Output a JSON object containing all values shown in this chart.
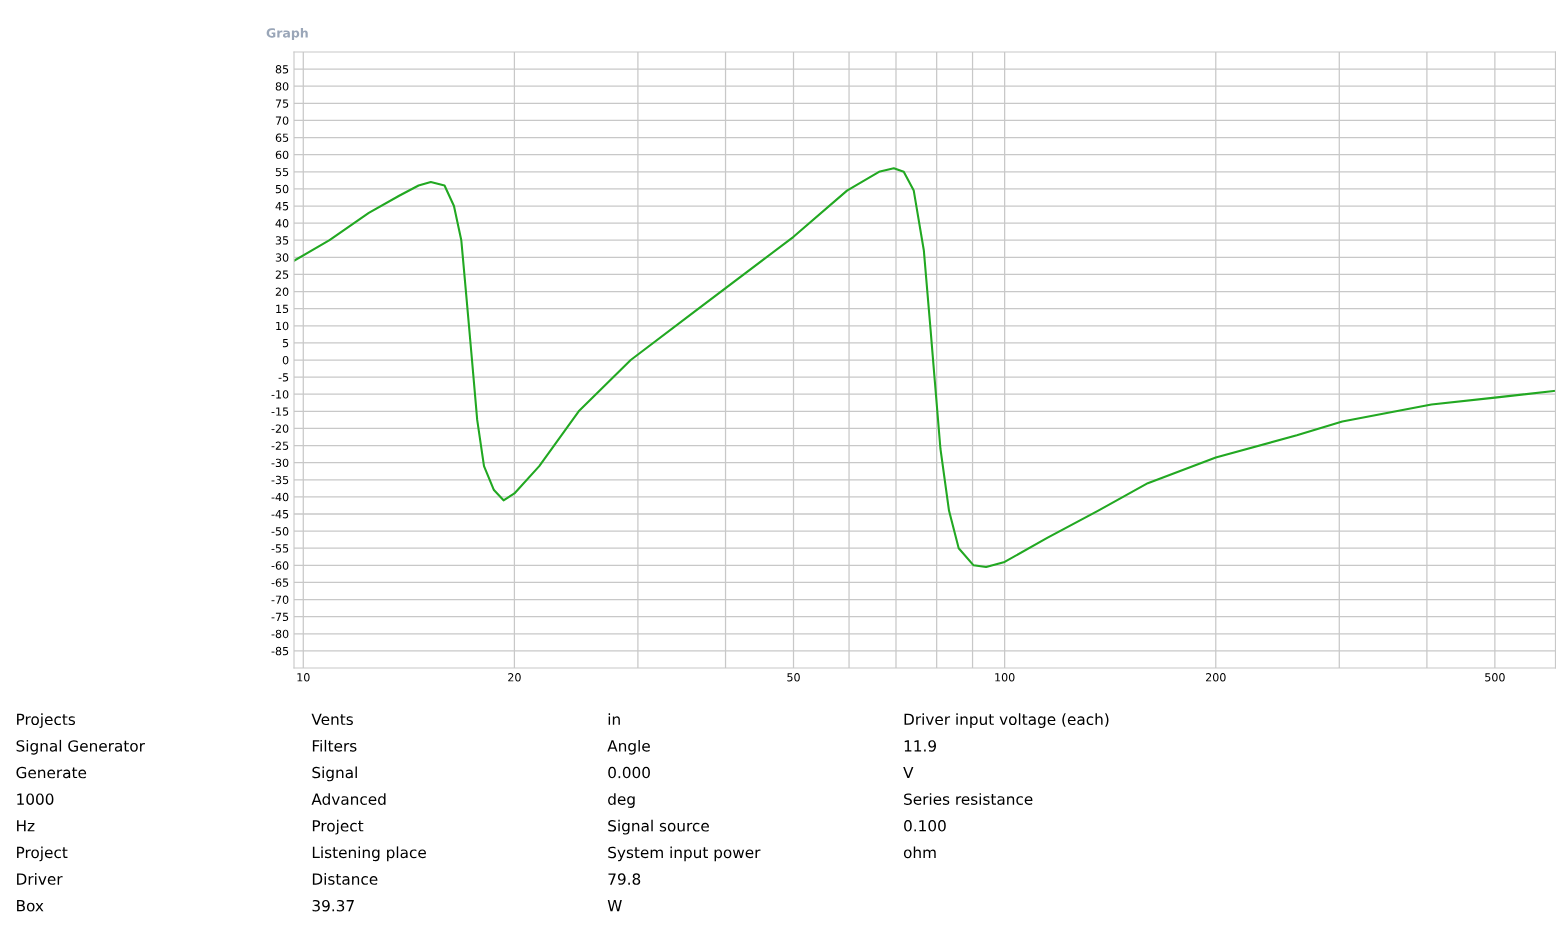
{
  "chart_data": {
    "type": "line",
    "title": "Graph",
    "xlim": [
      9.7,
      610
    ],
    "ylim": [
      -90,
      90
    ],
    "log": "x",
    "xticks": [
      10,
      20,
      {
        "value": 30,
        "label": null
      },
      {
        "value": 40,
        "label": null
      },
      50,
      {
        "value": 60,
        "label": null
      },
      {
        "value": 70,
        "label": null
      },
      {
        "value": 80,
        "label": null
      },
      {
        "value": 90,
        "label": null
      },
      100,
      200,
      {
        "value": 300,
        "label": null
      },
      {
        "value": 400,
        "label": null
      },
      500
    ],
    "yticks": [
      -85,
      -80,
      -75,
      -70,
      -65,
      -60,
      -55,
      -50,
      -45,
      -40,
      -35,
      -30,
      -25,
      -20,
      -15,
      -10,
      -5,
      0,
      5,
      10,
      15,
      20,
      25,
      30,
      35,
      40,
      45,
      50,
      55,
      60,
      65,
      70,
      75,
      80,
      85
    ],
    "grid": true,
    "marker": "none",
    "line_style": "solid",
    "series": [
      {
        "color": "#22a822",
        "x": [
          9.7,
          10.9,
          12.4,
          13.7,
          14.6,
          15.2,
          15.9,
          16.4,
          16.8,
          17.1,
          17.4,
          17.7,
          18.1,
          18.7,
          19.3,
          20.0,
          21.7,
          24.7,
          29.3,
          36.6,
          50,
          59.6,
          66.2,
          69.5,
          71.8,
          74.2,
          76.7,
          78.4,
          79.5,
          81,
          83.3,
          86,
          90.3,
          94.1,
          100,
          115,
          136,
          160,
          200,
          261,
          303,
          406,
          500,
          610
        ],
        "values": [
          29,
          35,
          43,
          48,
          51,
          52,
          51,
          45,
          35,
          17.5,
          0,
          -17.5,
          -31,
          -38,
          -41,
          -39,
          -31,
          -15,
          0,
          15,
          36,
          49.5,
          55,
          56,
          55,
          49.5,
          32,
          9,
          -6,
          -26,
          -44,
          -55,
          -60,
          -60.5,
          -59,
          -52,
          -44,
          -36,
          -28.5,
          -22,
          -18,
          -13,
          -11,
          -9
        ]
      }
    ],
    "annotations": [
      "Projects",
      "Signal Generator",
      "Generate",
      "1000",
      "Hz",
      "Project",
      "Driver",
      "Box",
      "Vents",
      "Filters",
      "Signal",
      "Advanced",
      "Project",
      "Listening place",
      "Distance",
      "39.37",
      "in",
      "Angle",
      "0.000",
      "deg",
      "Signal source",
      "System input power",
      "79.8",
      "W",
      "Driver input voltage (each)",
      "11.9",
      "V",
      "Series resistance",
      "0.100",
      "ohm"
    ]
  }
}
